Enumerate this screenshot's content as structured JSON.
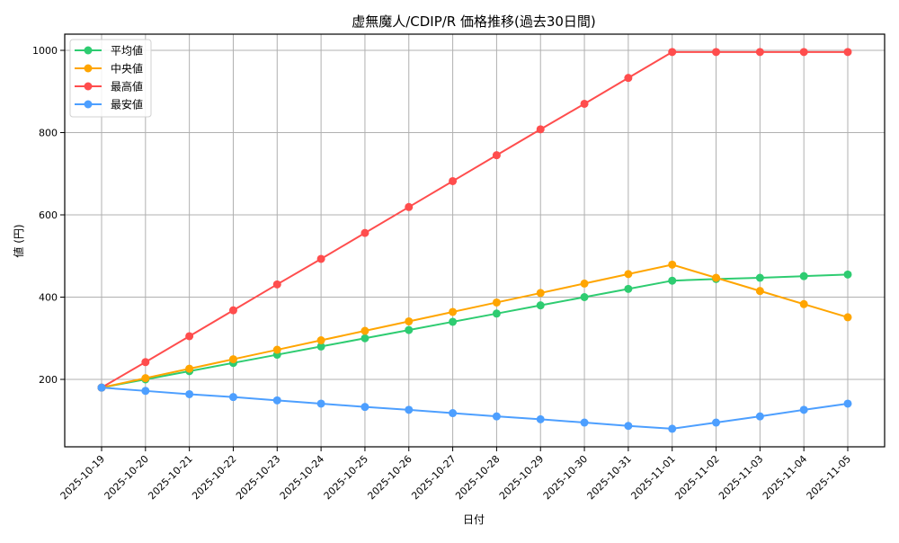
{
  "chart_data": {
    "type": "line",
    "title": "虚無魔人/CDIP/R 価格推移(過去30日間)",
    "xlabel": "日付",
    "ylabel": "値 (円)",
    "ylim": [
      35,
      1040
    ],
    "yticks": [
      200,
      400,
      600,
      800,
      1000
    ],
    "grid": true,
    "legend_position": "upper left",
    "categories": [
      "2025-10-19",
      "2025-10-20",
      "2025-10-21",
      "2025-10-22",
      "2025-10-23",
      "2025-10-24",
      "2025-10-25",
      "2025-10-26",
      "2025-10-27",
      "2025-10-28",
      "2025-10-29",
      "2025-10-30",
      "2025-10-31",
      "2025-11-01",
      "2025-11-02",
      "2025-11-03",
      "2025-11-04",
      "2025-11-05"
    ],
    "series": [
      {
        "name": "平均値",
        "color": "#2ecc71",
        "values": [
          180,
          200,
          220,
          240,
          260,
          280,
          300,
          320,
          340,
          360,
          380,
          400,
          420,
          440,
          444,
          447,
          451,
          455
        ]
      },
      {
        "name": "中央値",
        "color": "#ffa500",
        "values": [
          180,
          203,
          226,
          249,
          272,
          295,
          318,
          341,
          364,
          387,
          410,
          433,
          456,
          479,
          447,
          415,
          383,
          351
        ]
      },
      {
        "name": "最高値",
        "color": "#ff4d4d",
        "values": [
          180,
          242,
          305,
          368,
          431,
          493,
          556,
          619,
          682,
          745,
          808,
          870,
          933,
          996,
          996,
          996,
          996,
          996
        ]
      },
      {
        "name": "最安値",
        "color": "#4d9fff",
        "values": [
          180,
          172,
          164,
          157,
          149,
          141,
          133,
          126,
          118,
          110,
          103,
          95,
          87,
          80,
          95,
          110,
          126,
          141
        ]
      }
    ]
  }
}
